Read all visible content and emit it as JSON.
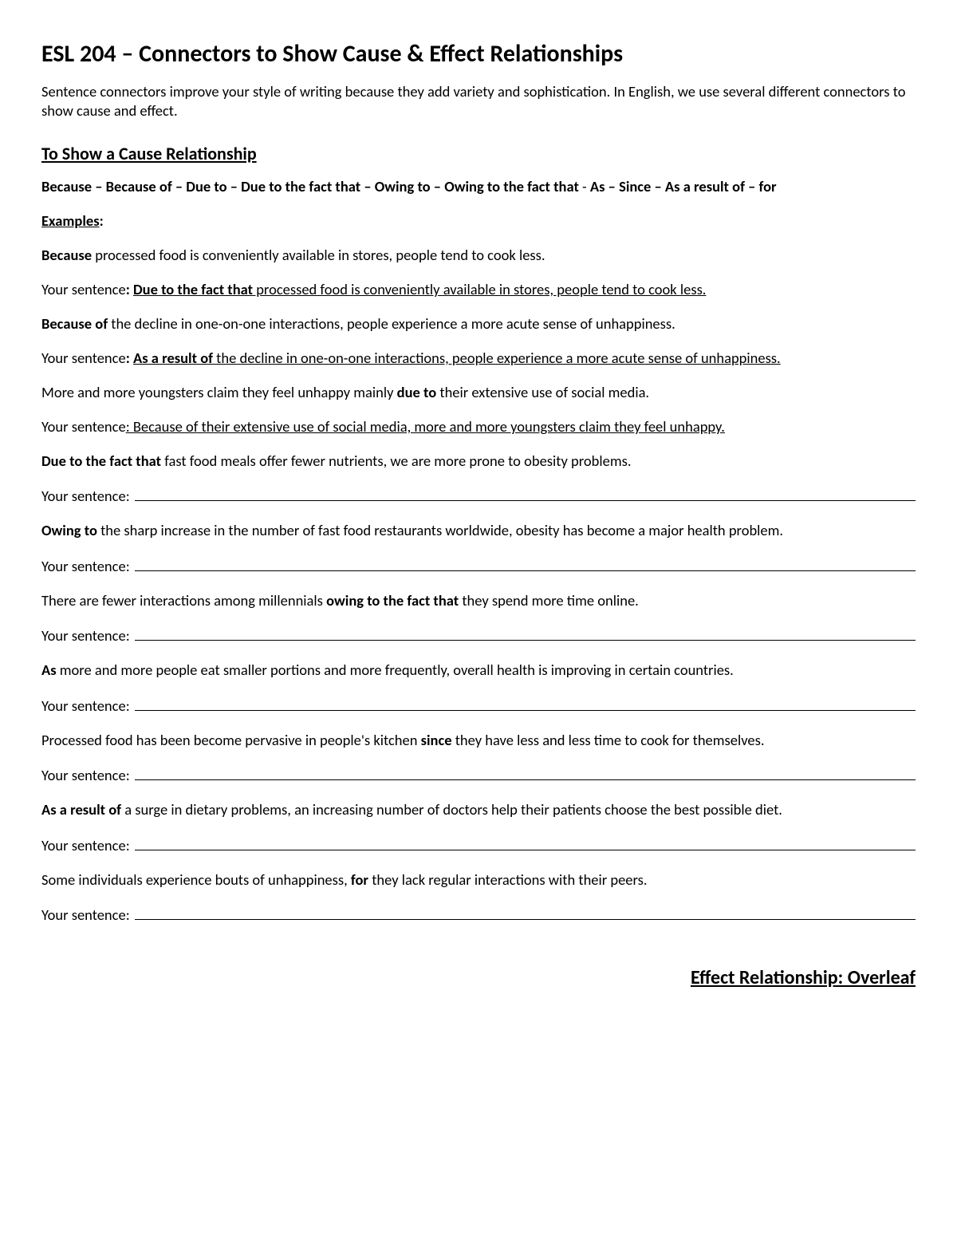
{
  "title": "ESL 204 – Connectors to Show Cause & Effect Relationships",
  "intro": "Sentence connectors improve your style of writing because they add variety and sophistication. In English, we use several different connectors to show cause and effect.",
  "section_heading": "To Show a Cause Relationship",
  "connector_list_a": "Because – Because of – Due to – Due to the fact that – Owing to – Owing to the fact that ",
  "connector_list_sep": "- ",
  "connector_list_b": "As – Since – As a result of – for",
  "examples_label": "Examples",
  "colon": ":",
  "ex1_pre": "Because",
  "ex1_post": " processed food is conveniently available in stores, people tend to cook less.",
  "your_sentence_label": "Your sentence",
  "ys1_conn": "Due to the fact that",
  "ys1_rest": " processed food is conveniently available in stores, people tend to cook less.",
  "ex2_pre": "Because of",
  "ex2_post": " the decline in one-on-one interactions, people experience a more acute sense of unhappiness.",
  "ys2_conn": "As a result of",
  "ys2_rest": " the decline in one-on-one interactions, people experience a more acute sense of unhappiness.",
  "ex3_a": "More and more youngsters claim they feel unhappy mainly ",
  "ex3_b": "due to",
  "ex3_c": " their extensive use of social media.",
  "ys3_rest": ": Because of their extensive use of social media, more and more youngsters claim they feel unhappy.",
  "ex4_pre": "Due to the fact that",
  "ex4_post": " fast food meals offer fewer nutrients, we are more prone to obesity problems.",
  "ex5_pre": "Owing to",
  "ex5_post": " the sharp increase in the number of fast food restaurants worldwide, obesity has become a major health problem.",
  "ex6_a": "There are fewer interactions among millennials ",
  "ex6_b": "owing to the fact that",
  "ex6_c": " they spend more time online.",
  "ex7_pre": "As",
  "ex7_post": " more and more people eat smaller portions and more frequently, overall health is improving in certain countries.",
  "ex8_a": "Processed food has been become pervasive in people's kitchen ",
  "ex8_b": "since",
  "ex8_c": " they have less and less time to cook for themselves.",
  "ex9_pre": "As a result of",
  "ex9_post": " a surge in dietary problems, an increasing number of doctors help their patients choose the best possible diet.",
  "ex10_a": "Some individuals experience bouts of unhappiness, ",
  "ex10_b": "for",
  "ex10_c": " they lack regular interactions with their peers.",
  "footer": "Effect Relationship: Overleaf"
}
